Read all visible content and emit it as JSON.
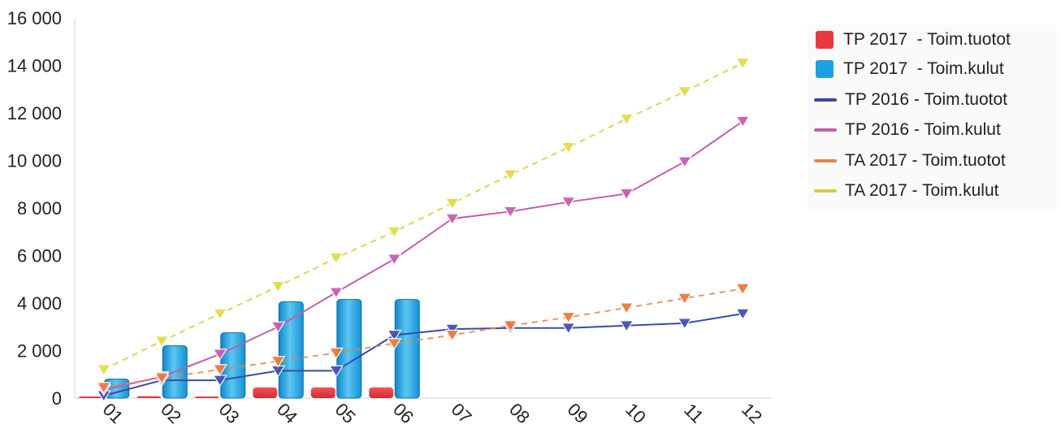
{
  "chart_data": {
    "type": "bar",
    "categories": [
      "01",
      "02",
      "03",
      "04",
      "05",
      "06",
      "07",
      "08",
      "09",
      "10",
      "11",
      "12"
    ],
    "y_ticks": [
      "0",
      "2 000",
      "4 000",
      "6 000",
      "8 000",
      "10 000",
      "12 000",
      "14 000",
      "16 000"
    ],
    "ylim": [
      0,
      16000
    ],
    "grid": false,
    "legend_position": "right",
    "series": [
      {
        "name": "TP 2017  - Toim.tuotot",
        "kind": "bar",
        "color": "#e8383d",
        "values": [
          50,
          80,
          60,
          450,
          450,
          450,
          null,
          null,
          null,
          null,
          null,
          null
        ]
      },
      {
        "name": "TP 2017  - Toim.kulut",
        "kind": "bar",
        "color": "#1ba1e2",
        "values": [
          800,
          2200,
          2750,
          4050,
          4150,
          4150,
          null,
          null,
          null,
          null,
          null,
          null
        ]
      },
      {
        "name": "TP 2016 - Toim.tuotot",
        "kind": "line",
        "color": "#3a4aa8",
        "values": [
          100,
          750,
          750,
          1150,
          1150,
          2650,
          2900,
          2950,
          2950,
          3050,
          3150,
          3550
        ]
      },
      {
        "name": "TP 2016 - Toim.kulut",
        "kind": "line",
        "color": "#c060a8",
        "values": [
          350,
          900,
          1850,
          3000,
          4450,
          5850,
          7550,
          7850,
          8250,
          8600,
          9950,
          11650
        ]
      },
      {
        "name": "TA 2017 - Toim.tuotot",
        "kind": "dashed",
        "color": "#e8834a",
        "values": [
          450,
          850,
          1200,
          1550,
          1900,
          2300,
          2650,
          3050,
          3400,
          3800,
          4200,
          4600
        ]
      },
      {
        "name": "TA 2017 - Toim.kulut",
        "kind": "dashed",
        "color": "#d4cc3c",
        "values": [
          1200,
          2400,
          3550,
          4700,
          5900,
          7000,
          8200,
          9400,
          10550,
          11750,
          12900,
          14100
        ]
      }
    ]
  }
}
